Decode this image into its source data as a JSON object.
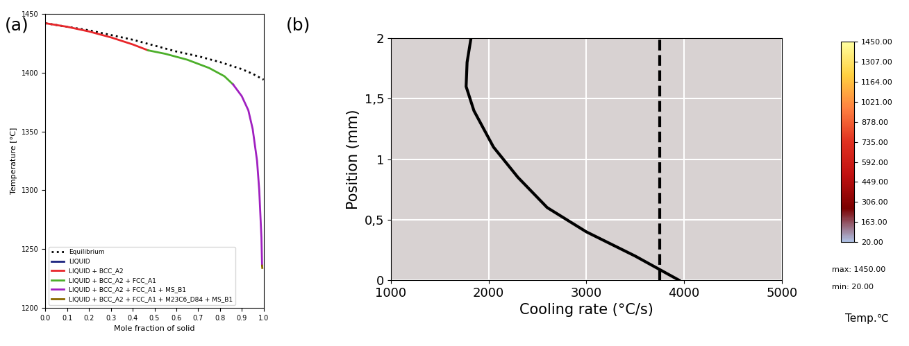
{
  "chart_data": [
    {
      "type": "line",
      "panel_label": "(a)",
      "x_label": "Mole fraction of solid",
      "y_label": "Temperature [°C]",
      "xlim": [
        0.0,
        1.0
      ],
      "ylim": [
        1200,
        1450
      ],
      "xticks": [
        0.0,
        0.1,
        0.2,
        0.3,
        0.4,
        0.5,
        0.6,
        0.7,
        0.8,
        0.9,
        1.0
      ],
      "yticks": [
        1200,
        1250,
        1300,
        1350,
        1400,
        1450
      ],
      "legend": "lower left",
      "grid": false,
      "series": [
        {
          "name": "Equilibrium",
          "color": "#000000",
          "line_style": "dotted",
          "x": [
            0.0,
            0.1,
            0.2,
            0.3,
            0.4,
            0.5,
            0.6,
            0.7,
            0.8,
            0.9,
            0.95,
            1.0
          ],
          "values": [
            1442,
            1439,
            1436,
            1432,
            1428,
            1423,
            1418,
            1414,
            1409,
            1403,
            1399,
            1394
          ]
        },
        {
          "name": "LIQUID",
          "color": "#1a237e",
          "line_style": "solid",
          "x": [
            0.0
          ],
          "values": [
            1442
          ]
        },
        {
          "name": "LIQUID + BCC_A2",
          "color": "#e8262a",
          "line_style": "solid",
          "x": [
            0.0,
            0.1,
            0.2,
            0.3,
            0.4,
            0.47
          ],
          "values": [
            1442,
            1439,
            1435,
            1430,
            1424,
            1419
          ]
        },
        {
          "name": "LIQUID + BCC_A2 + FCC_A1",
          "color": "#4caf2a",
          "line_style": "solid",
          "x": [
            0.47,
            0.55,
            0.65,
            0.75,
            0.82,
            0.86
          ],
          "values": [
            1419,
            1416,
            1411,
            1404,
            1397,
            1390
          ]
        },
        {
          "name": "LIQUID + BCC_A2 + FCC_A1 + MS_B1",
          "color": "#a020c0",
          "line_style": "solid",
          "x": [
            0.86,
            0.9,
            0.93,
            0.95,
            0.97,
            0.98,
            0.99,
            0.993
          ],
          "values": [
            1390,
            1380,
            1368,
            1352,
            1325,
            1300,
            1260,
            1236
          ]
        },
        {
          "name": "LIQUID + BCC_A2 + FCC_A1 + M23C6_D84 + MS_B1",
          "color": "#8b6a00",
          "line_style": "solid",
          "x": [
            0.993,
            0.994
          ],
          "values": [
            1236,
            1234
          ]
        }
      ]
    },
    {
      "type": "line",
      "panel_label": "(b)",
      "x_label": "Cooling rate (°C/s)",
      "y_label": "Position (mm)",
      "xlim": [
        1000,
        5000
      ],
      "ylim": [
        0,
        2
      ],
      "xticks": [
        1000,
        2000,
        3000,
        4000,
        5000
      ],
      "yticks": [
        0,
        {
          "value": 0.5,
          "label": "0,5"
        },
        1,
        {
          "value": 1.5,
          "label": "1,5"
        },
        2
      ],
      "grid": true,
      "series": [
        {
          "color": "#000000",
          "line_style": "solid",
          "x": [
            3950,
            3500,
            3000,
            2600,
            2300,
            2050,
            1850,
            1770,
            1780,
            1820
          ],
          "values": [
            0,
            0.2,
            0.4,
            0.6,
            0.85,
            1.1,
            1.4,
            1.6,
            1.8,
            2.0
          ]
        },
        {
          "color": "#000000",
          "line_style": "dashed",
          "x": [
            3750,
            3750
          ],
          "values": [
            0,
            2
          ]
        }
      ],
      "colorbar": {
        "label": "Temp.℃",
        "range": [
          20,
          1450
        ],
        "colors": [
          "#b0c4e8",
          "#7a0000",
          "#c01010",
          "#e03020",
          "#ff8040",
          "#ffd040",
          "#ffffa0"
        ],
        "ticks": [
          {
            "value": 1450,
            "label": "1450.00"
          },
          {
            "value": 1307,
            "label": "1307.00"
          },
          {
            "value": 1164,
            "label": "1164.00"
          },
          {
            "value": 1021,
            "label": "1021.00"
          },
          {
            "value": 878,
            "label": "878.00"
          },
          {
            "value": 735,
            "label": "735.00"
          },
          {
            "value": 592,
            "label": "592.00"
          },
          {
            "value": 449,
            "label": "449.00"
          },
          {
            "value": 306,
            "label": "306.00"
          },
          {
            "value": 163,
            "label": "163.00"
          },
          {
            "value": 20,
            "label": "20.00"
          }
        ]
      },
      "annotations": [
        "max: 1450.00",
        "min: 20.00"
      ]
    }
  ]
}
